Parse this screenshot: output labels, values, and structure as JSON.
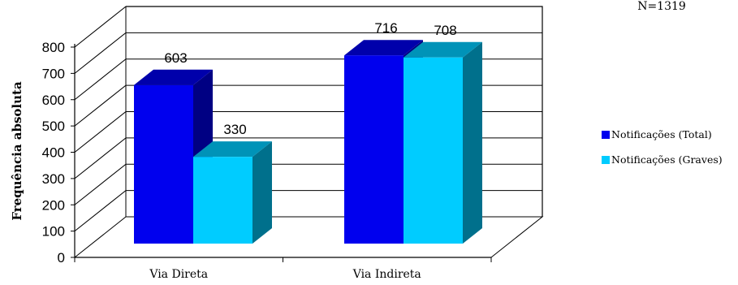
{
  "note": "N=1319",
  "chart_data": {
    "type": "bar",
    "title": "",
    "xlabel": "",
    "ylabel": "Frequência absoluta",
    "ylim": [
      0,
      800
    ],
    "yticks": [
      "0",
      "100",
      "200",
      "300",
      "400",
      "500",
      "600",
      "700",
      "800"
    ],
    "categories": [
      "Via Direta",
      "Via Indireta"
    ],
    "series": [
      {
        "name": "Notificações (Total)",
        "values": [
          603,
          716
        ],
        "color": "#0000ee"
      },
      {
        "name": "Notificações (Graves)",
        "values": [
          330,
          708
        ],
        "color": "#00ccff"
      }
    ],
    "legend_position": "right",
    "grid": true,
    "style": "3d"
  }
}
